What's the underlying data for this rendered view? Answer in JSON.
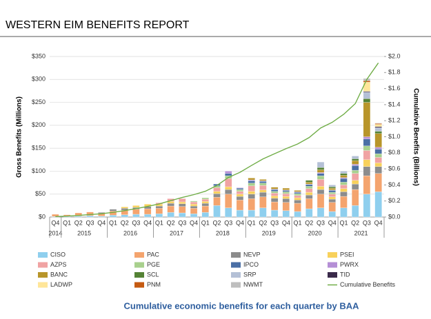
{
  "chart_data": {
    "type": "bar",
    "stacked": true,
    "title": "WESTERN EIM BENEFITS REPORT",
    "caption": "Cumulative economic benefits for each quarter by BAA",
    "ylabel": "Gross Benefits (Millions)",
    "y2label": "Cumulative Benefits (Billions)",
    "categories": [
      "Q4",
      "Q1",
      "Q2",
      "Q3",
      "Q4",
      "Q1",
      "Q2",
      "Q3",
      "Q4",
      "Q1",
      "Q2",
      "Q3",
      "Q4",
      "Q1",
      "Q2",
      "Q3",
      "Q4",
      "Q1",
      "Q2",
      "Q3",
      "Q4",
      "Q1",
      "Q2",
      "Q3",
      "Q4",
      "Q1",
      "Q2",
      "Q3",
      "Q4"
    ],
    "year_groups": [
      {
        "label": "2014",
        "quarters": 1
      },
      {
        "label": "2015",
        "quarters": 4
      },
      {
        "label": "2016",
        "quarters": 4
      },
      {
        "label": "2017",
        "quarters": 4
      },
      {
        "label": "2018",
        "quarters": 4
      },
      {
        "label": "2019",
        "quarters": 4
      },
      {
        "label": "2020",
        "quarters": 4
      },
      {
        "label": "2021",
        "quarters": 4
      }
    ],
    "ylim": [
      0,
      350
    ],
    "yticks": [
      {
        "value": 0,
        "label": "$0"
      },
      {
        "value": 50,
        "label": "$50"
      },
      {
        "value": 100,
        "label": "$100"
      },
      {
        "value": 150,
        "label": "$150"
      },
      {
        "value": 200,
        "label": "$200"
      },
      {
        "value": 250,
        "label": "$250"
      },
      {
        "value": 300,
        "label": "$300"
      },
      {
        "value": 350,
        "label": "$350"
      }
    ],
    "y2lim": [
      0,
      2.0
    ],
    "y2ticks": [
      {
        "value": 0,
        "label": "$0.0"
      },
      {
        "value": 0.2,
        "label": "$0.2"
      },
      {
        "value": 0.4,
        "label": "$0.4"
      },
      {
        "value": 0.6,
        "label": "$0.6"
      },
      {
        "value": 0.8,
        "label": "$0.8"
      },
      {
        "value": 1.0,
        "label": "$1.0"
      },
      {
        "value": 1.2,
        "label": "$1.2"
      },
      {
        "value": 1.4,
        "label": "$1.4"
      },
      {
        "value": 1.6,
        "label": "$1.6"
      },
      {
        "value": 1.8,
        "label": "$1.8"
      },
      {
        "value": 2.0,
        "label": "$2.0"
      }
    ],
    "series": [
      {
        "name": "CISO",
        "color": "#8fcfee",
        "values": [
          1,
          1,
          2,
          3,
          2,
          4,
          5,
          6,
          6,
          7,
          10,
          9,
          7,
          10,
          25,
          20,
          15,
          15,
          20,
          15,
          14,
          12,
          18,
          20,
          12,
          20,
          25,
          50,
          55
        ]
      },
      {
        "name": "PAC",
        "color": "#f4a46e",
        "values": [
          5,
          4,
          7,
          8,
          6,
          9,
          10,
          11,
          12,
          12,
          14,
          14,
          12,
          14,
          18,
          30,
          22,
          25,
          24,
          18,
          18,
          18,
          22,
          30,
          20,
          25,
          35,
          40,
          40
        ]
      },
      {
        "name": "NEVP",
        "color": "#8c8c8c",
        "values": [
          0,
          0,
          0,
          0,
          2,
          4,
          4,
          4,
          5,
          5,
          6,
          6,
          5,
          6,
          8,
          10,
          8,
          10,
          10,
          8,
          8,
          7,
          8,
          10,
          7,
          10,
          12,
          20,
          15
        ]
      },
      {
        "name": "PSEI",
        "color": "#f8d15b",
        "values": [
          0,
          0,
          0,
          0,
          0,
          0,
          3,
          4,
          5,
          4,
          4,
          4,
          4,
          4,
          5,
          6,
          5,
          6,
          5,
          5,
          5,
          5,
          6,
          7,
          5,
          7,
          8,
          15,
          8
        ]
      },
      {
        "name": "AZPS",
        "color": "#f0a3a3",
        "values": [
          0,
          0,
          0,
          0,
          0,
          0,
          0,
          0,
          0,
          3,
          6,
          7,
          5,
          5,
          8,
          18,
          6,
          12,
          10,
          6,
          6,
          5,
          8,
          15,
          6,
          8,
          15,
          20,
          12
        ]
      },
      {
        "name": "PGE",
        "color": "#a8d08d",
        "values": [
          0,
          0,
          0,
          0,
          0,
          0,
          0,
          0,
          0,
          0,
          0,
          0,
          2,
          3,
          4,
          6,
          4,
          6,
          5,
          4,
          4,
          4,
          5,
          8,
          4,
          6,
          7,
          10,
          8
        ]
      },
      {
        "name": "IPCO",
        "color": "#4a6fa5",
        "values": [
          0,
          0,
          0,
          0,
          0,
          0,
          0,
          0,
          0,
          0,
          0,
          0,
          0,
          0,
          4,
          5,
          3,
          5,
          4,
          4,
          3,
          3,
          4,
          5,
          4,
          8,
          10,
          15,
          10
        ]
      },
      {
        "name": "PWRX",
        "color": "#b58fd6",
        "values": [
          0,
          0,
          0,
          0,
          0,
          0,
          0,
          0,
          0,
          0,
          0,
          0,
          0,
          0,
          0,
          5,
          1,
          2,
          1,
          1,
          1,
          1,
          1,
          2,
          1,
          2,
          3,
          5,
          4
        ]
      },
      {
        "name": "BANC",
        "color": "#b8952a",
        "values": [
          0,
          0,
          0,
          0,
          0,
          0,
          0,
          0,
          0,
          0,
          0,
          0,
          0,
          0,
          0,
          0,
          0,
          4,
          3,
          4,
          4,
          3,
          4,
          6,
          4,
          5,
          8,
          75,
          30
        ]
      },
      {
        "name": "SCL",
        "color": "#548235",
        "values": [
          0,
          0,
          0,
          0,
          0,
          0,
          0,
          0,
          0,
          0,
          0,
          0,
          0,
          0,
          0,
          0,
          0,
          0,
          0,
          0,
          0,
          0,
          4,
          5,
          3,
          4,
          4,
          8,
          5
        ]
      },
      {
        "name": "SRP",
        "color": "#b4c0d6",
        "values": [
          0,
          0,
          0,
          0,
          0,
          0,
          0,
          0,
          0,
          0,
          0,
          0,
          0,
          0,
          0,
          0,
          0,
          0,
          0,
          0,
          0,
          0,
          0,
          12,
          4,
          5,
          6,
          14,
          8
        ]
      },
      {
        "name": "TID",
        "color": "#3a2a4a",
        "values": [
          0,
          0,
          0,
          0,
          0,
          0,
          0,
          0,
          0,
          0,
          0,
          0,
          0,
          0,
          0,
          0,
          0,
          0,
          0,
          0,
          0,
          0,
          0,
          0,
          0,
          0,
          0,
          2,
          2
        ]
      },
      {
        "name": "LADWP",
        "color": "#ffe699",
        "values": [
          0,
          0,
          0,
          0,
          0,
          0,
          0,
          0,
          0,
          0,
          0,
          0,
          0,
          0,
          0,
          0,
          0,
          0,
          0,
          0,
          0,
          0,
          0,
          0,
          0,
          0,
          0,
          20,
          5
        ]
      },
      {
        "name": "PNM",
        "color": "#c55a11",
        "values": [
          0,
          0,
          0,
          0,
          0,
          0,
          0,
          0,
          0,
          0,
          0,
          0,
          0,
          0,
          0,
          0,
          0,
          0,
          0,
          0,
          0,
          0,
          0,
          0,
          0,
          0,
          0,
          3,
          2
        ]
      },
      {
        "name": "NWMT",
        "color": "#bfbfbf",
        "values": [
          0,
          0,
          0,
          0,
          0,
          0,
          0,
          0,
          0,
          0,
          0,
          0,
          0,
          0,
          0,
          0,
          0,
          0,
          0,
          0,
          0,
          0,
          0,
          0,
          0,
          0,
          0,
          5,
          1
        ]
      },
      {
        "name": "Cumulative Benefits",
        "color": "#70ad47",
        "type": "line",
        "axis": "y2",
        "values": [
          0.006,
          0.011,
          0.02,
          0.031,
          0.041,
          0.058,
          0.08,
          0.105,
          0.133,
          0.164,
          0.204,
          0.244,
          0.279,
          0.321,
          0.393,
          0.493,
          0.557,
          0.642,
          0.724,
          0.789,
          0.852,
          0.91,
          0.99,
          1.11,
          1.18,
          1.28,
          1.413,
          1.715,
          1.92
        ]
      }
    ]
  }
}
